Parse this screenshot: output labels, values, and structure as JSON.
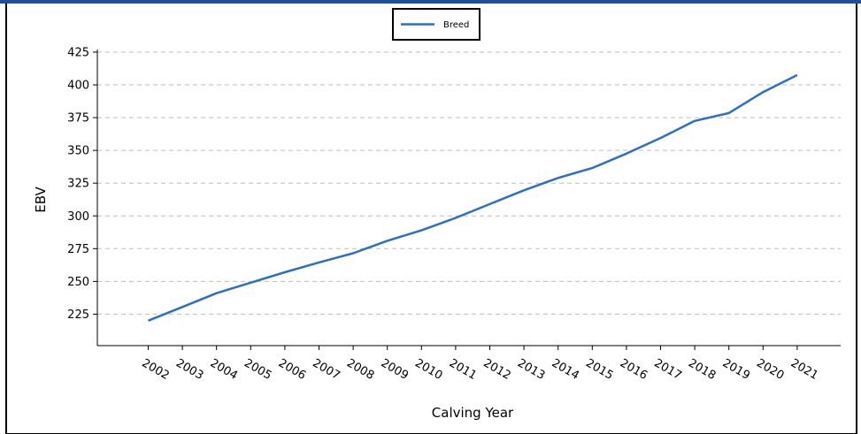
{
  "chart_data": {
    "type": "line",
    "xlabel": "Calving Year",
    "ylabel": "EBV",
    "categories": [
      "2002",
      "2003",
      "2004",
      "2005",
      "2006",
      "2007",
      "2008",
      "2009",
      "2010",
      "2011",
      "2012",
      "2013",
      "2014",
      "2015",
      "2016",
      "2017",
      "2018",
      "2019",
      "2020",
      "2021"
    ],
    "series": [
      {
        "name": "Breed",
        "color": "#2a6ec6",
        "values": [
          220,
          230.5,
          241,
          249,
          257,
          264.5,
          271.5,
          281,
          289,
          298.5,
          309,
          319.5,
          329,
          336.5,
          347.5,
          359.5,
          372.5,
          378.5,
          394.5,
          407.5
        ]
      }
    ],
    "yticks": [
      225,
      250,
      275,
      300,
      325,
      350,
      375,
      400,
      425
    ],
    "ylim": [
      201,
      427
    ],
    "grid": "horizontal dashed",
    "legend": "top-center"
  }
}
